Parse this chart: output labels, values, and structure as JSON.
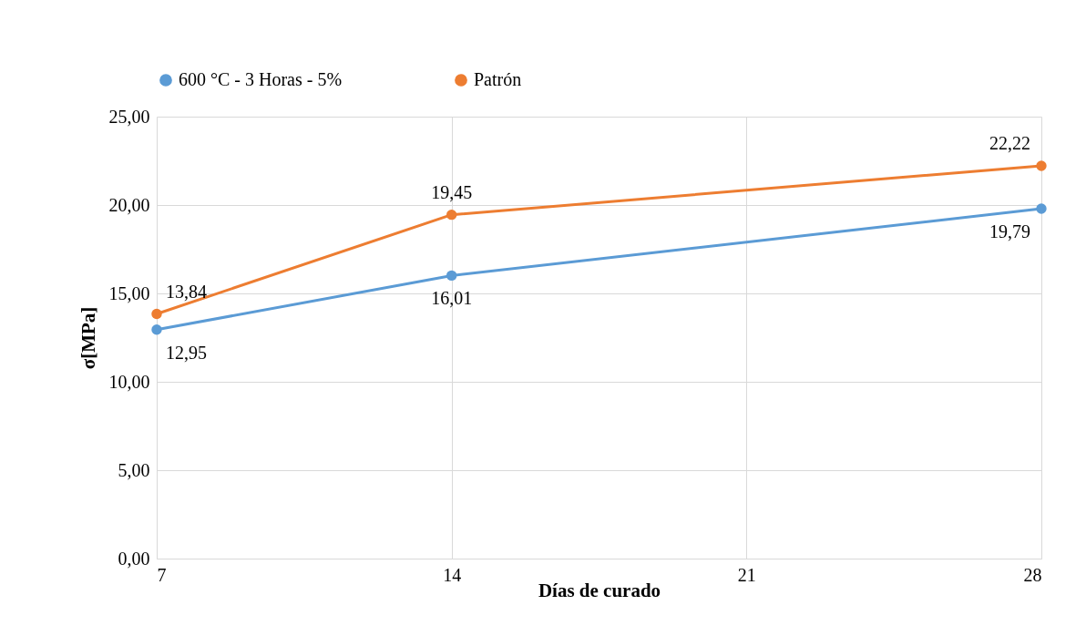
{
  "chart_data": {
    "type": "line",
    "xlabel": "Días de curado",
    "ylabel": "σ[MPa]",
    "x": [
      7,
      14,
      28
    ],
    "series": [
      {
        "name": "600 °C - 3 Horas - 5%",
        "color": "#5b9bd5",
        "values": [
          12.95,
          16.01,
          19.79
        ],
        "value_labels": [
          "12,95",
          "16,01",
          "19,79"
        ]
      },
      {
        "name": "Patrón",
        "color": "#ed7d31",
        "values": [
          13.84,
          19.45,
          22.22
        ],
        "value_labels": [
          "13,84",
          "19,45",
          "22,22"
        ]
      }
    ],
    "xlim": [
      7,
      28
    ],
    "xticks": [
      7,
      14,
      21,
      28
    ],
    "ylim": [
      0,
      25
    ],
    "yticks": [
      {
        "value": 0,
        "label": "0,00"
      },
      {
        "value": 5,
        "label": "5,00"
      },
      {
        "value": 10,
        "label": "10,00"
      },
      {
        "value": 15,
        "label": "15,00"
      },
      {
        "value": 20,
        "label": "20,00"
      },
      {
        "value": 25,
        "label": "25,00"
      }
    ],
    "grid": true,
    "legend": "top",
    "marker": "circle",
    "line_style": "solid"
  }
}
